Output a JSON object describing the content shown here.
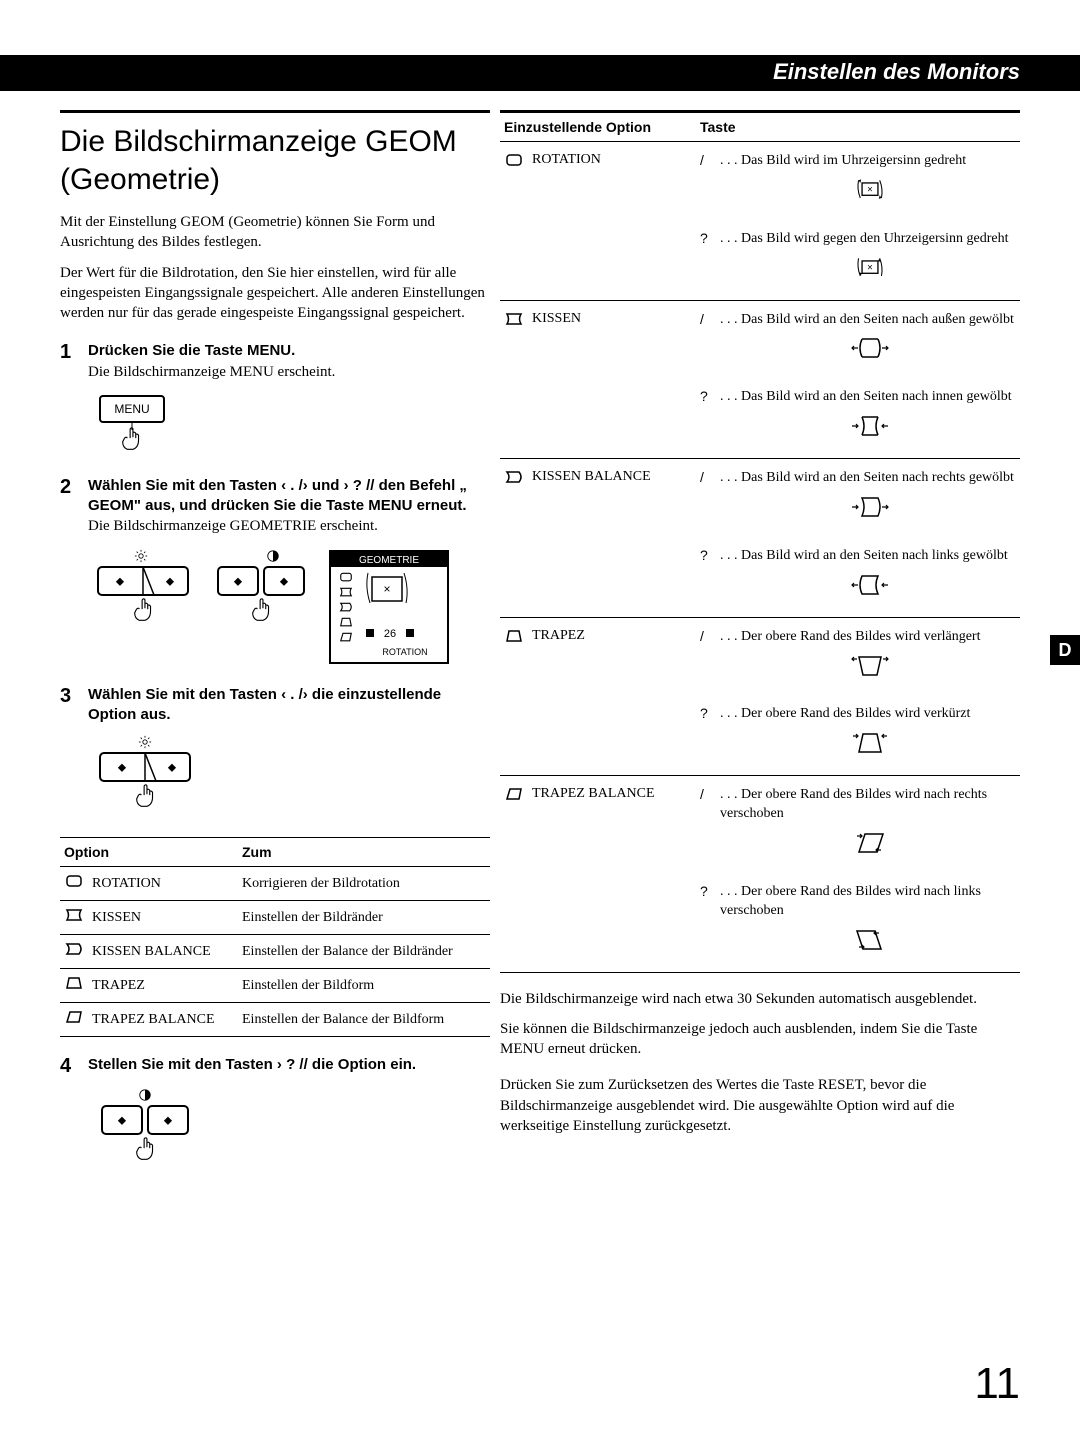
{
  "header": {
    "title": "Einstellen des Monitors"
  },
  "sideTab": "D",
  "pageNumber": "11",
  "leftCol": {
    "title": "Die Bildschirmanzeige GEOM (Geometrie)",
    "intro1": "Mit der Einstellung GEOM (Geometrie) können Sie Form und Ausrichtung des Bildes festlegen.",
    "intro2": "Der Wert für die Bildrotation, den Sie hier einstellen, wird für alle eingespeisten Eingangssignale gespeichert. Alle anderen Einstellungen werden nur für das gerade eingespeiste Eingangssignal gespeichert.",
    "steps": [
      {
        "num": "1",
        "title": "Drücken Sie die Taste MENU.",
        "text": "Die Bildschirmanzeige MENU erscheint.",
        "illus": "menu-button"
      },
      {
        "num": "2",
        "title": "Wählen Sie mit den Tasten ‹ . /› und › ? //  den Befehl „  GEOM\" aus, und drücken Sie die Taste MENU erneut.",
        "text": "Die Bildschirmanzeige GEOMETRIE erscheint.",
        "illus": "buttons-and-osd"
      },
      {
        "num": "3",
        "title": "Wählen Sie mit den Tasten ‹ . /› die einzustellende Option aus.",
        "text": "",
        "illus": "single-button"
      },
      {
        "num": "4",
        "title": "Stellen Sie mit den Tasten › ? //  die Option ein.",
        "text": "",
        "illus": "single-button-contrast"
      }
    ],
    "optTable": {
      "head": {
        "c1": "Option",
        "c2": "Zum"
      },
      "rows": [
        {
          "icon": "rotation",
          "name": "ROTATION",
          "desc": "Korrigieren der Bildrotation"
        },
        {
          "icon": "pincushion",
          "name": "KISSEN",
          "desc": "Einstellen der Bildränder"
        },
        {
          "icon": "pinbalance",
          "name": "KISSEN BALANCE",
          "desc": "Einstellen der Balance der Bildränder"
        },
        {
          "icon": "trapez",
          "name": "TRAPEZ",
          "desc": "Einstellen der Bildform"
        },
        {
          "icon": "trapezbal",
          "name": "TRAPEZ BALANCE",
          "desc": "Einstellen der Balance der Bildform"
        }
      ]
    }
  },
  "rightCol": {
    "head": {
      "c1": "Einzustellende Option",
      "c2": "Taste"
    },
    "rows": [
      {
        "icon": "rotation",
        "name": "ROTATION",
        "subs": [
          {
            "sym": "/",
            "desc": ". . . Das Bild wird im Uhrzeigersinn gedreht",
            "diag": "rot-cw"
          },
          {
            "sym": "?",
            "desc": ". . . Das Bild wird gegen den Uhrzeigersinn gedreht",
            "diag": "rot-ccw"
          }
        ]
      },
      {
        "icon": "pincushion",
        "name": "KISSEN",
        "subs": [
          {
            "sym": "/",
            "desc": ". . . Das Bild wird an den Seiten nach außen gewölbt",
            "diag": "pin-out"
          },
          {
            "sym": "?",
            "desc": ". . . Das Bild wird an den Seiten nach innen gewölbt",
            "diag": "pin-in"
          }
        ]
      },
      {
        "icon": "pinbalance",
        "name": "KISSEN BALANCE",
        "subs": [
          {
            "sym": "/",
            "desc": ". . . Das Bild wird an den Seiten nach rechts gewölbt",
            "diag": "pinbal-r"
          },
          {
            "sym": "?",
            "desc": ". . . Das Bild wird an den Seiten nach links gewölbt",
            "diag": "pinbal-l"
          }
        ]
      },
      {
        "icon": "trapez",
        "name": "TRAPEZ",
        "subs": [
          {
            "sym": "/",
            "desc": ". . . Der obere Rand des Bildes wird verlängert",
            "diag": "trap-wide"
          },
          {
            "sym": "?",
            "desc": ". . . Der obere Rand des Bildes wird verkürzt",
            "diag": "trap-narrow"
          }
        ]
      },
      {
        "icon": "trapezbal",
        "name": "TRAPEZ BALANCE",
        "subs": [
          {
            "sym": "/",
            "desc": ". . . Der obere Rand des Bildes wird nach rechts verschoben",
            "diag": "trapbal-r"
          },
          {
            "sym": "?",
            "desc": ". . . Der obere Rand des Bildes wird nach links verschoben",
            "diag": "trapbal-l"
          }
        ]
      }
    ],
    "footer1": "Die Bildschirmanzeige wird nach etwa 30 Sekunden automatisch ausgeblendet.",
    "footer2": "Sie können die Bildschirmanzeige jedoch auch ausblenden, indem Sie die Taste MENU erneut drücken.",
    "footer3": "Drücken Sie zum Zurücksetzen des Wertes die Taste RESET, bevor die Bildschirmanzeige ausgeblendet wird. Die ausgewählte Option wird auf die werkseitige Einstellung zurückgesetzt.",
    "osd": {
      "title": "GEOMETRIE",
      "value": "26",
      "caption": "ROTATION"
    }
  },
  "style": {
    "page_bg": "#ffffff",
    "black": "#000000",
    "body_fontsize": 15,
    "h1_fontsize": 30,
    "pagenum_fontsize": 44
  }
}
